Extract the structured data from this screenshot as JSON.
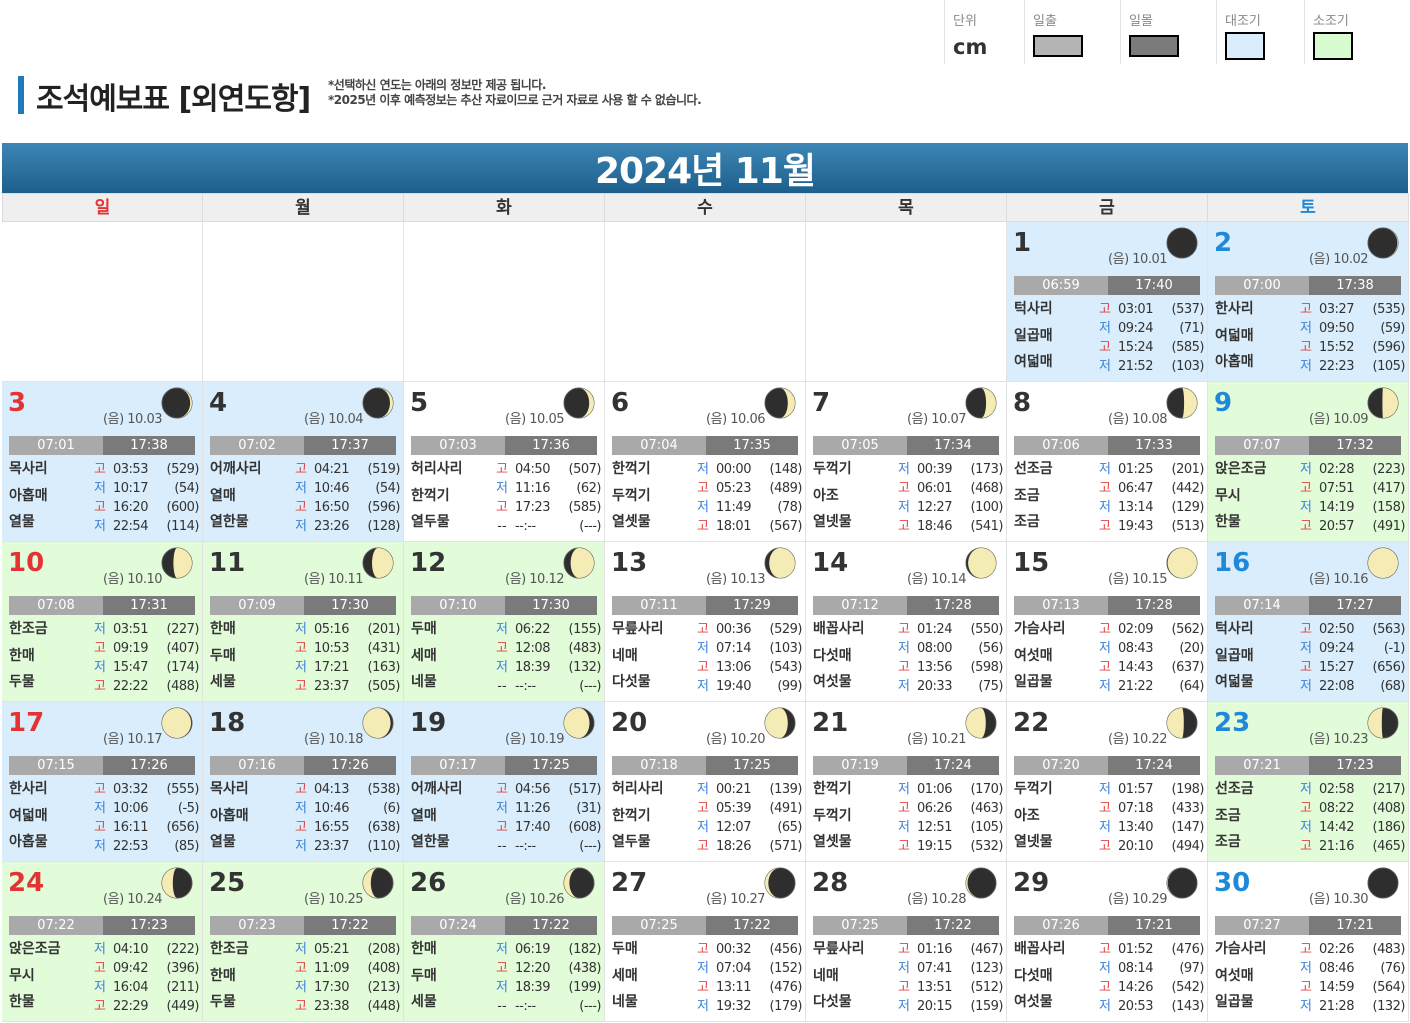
{
  "header": {
    "title": "조석예보표 [외연도항]",
    "note1": "*선택하신 연도는 아래의 정보만 제공 됩니다.",
    "note2": "*2025년 이후 예측정보는 추산 자료이므로 근거 자료로 사용 할 수 없습니다."
  },
  "legend": {
    "unit_label": "단위",
    "unit_value": "cm",
    "sunrise_label": "일출",
    "sunset_label": "일몰",
    "ebb_label": "대조기",
    "flood_label": "소조기",
    "sunrise_color": "#b4b4b4",
    "sunset_color": "#7a7a7a",
    "ebb_color": "#d9edfc",
    "flood_color": "#d9fbd0"
  },
  "calendar": {
    "month_title": "2024년 11월",
    "weekdays": [
      "일",
      "월",
      "화",
      "수",
      "목",
      "금",
      "토"
    ],
    "leading_blanks": 5,
    "days": [
      {
        "day": "1",
        "lunar": "(음) 10.01",
        "moon": 0.0,
        "bg": "ebb",
        "sunrise": "06:59",
        "sunset": "17:40",
        "names": [
          "턱사리",
          "일곱매",
          "여덟매"
        ],
        "tides": [
          [
            "고",
            "03:01",
            "(537)"
          ],
          [
            "저",
            "09:24",
            "(71)"
          ],
          [
            "고",
            "15:24",
            "(585)"
          ],
          [
            "저",
            "21:52",
            "(103)"
          ]
        ]
      },
      {
        "day": "2",
        "lunar": "(음) 10.02",
        "moon": 0.02,
        "bg": "ebb",
        "sunrise": "07:00",
        "sunset": "17:38",
        "names": [
          "한사리",
          "여덟매",
          "아홉매"
        ],
        "tides": [
          [
            "고",
            "03:27",
            "(535)"
          ],
          [
            "저",
            "09:50",
            "(59)"
          ],
          [
            "고",
            "15:52",
            "(596)"
          ],
          [
            "저",
            "22:23",
            "(105)"
          ]
        ]
      },
      {
        "day": "3",
        "lunar": "(음) 10.03",
        "moon": 0.06,
        "bg": "ebb",
        "sunrise": "07:01",
        "sunset": "17:38",
        "names": [
          "목사리",
          "아홉매",
          "열물"
        ],
        "tides": [
          [
            "고",
            "03:53",
            "(529)"
          ],
          [
            "저",
            "10:17",
            "(54)"
          ],
          [
            "고",
            "16:20",
            "(600)"
          ],
          [
            "저",
            "22:54",
            "(114)"
          ]
        ]
      },
      {
        "day": "4",
        "lunar": "(음) 10.04",
        "moon": 0.1,
        "bg": "ebb",
        "sunrise": "07:02",
        "sunset": "17:37",
        "names": [
          "어깨사리",
          "열매",
          "열한물"
        ],
        "tides": [
          [
            "고",
            "04:21",
            "(519)"
          ],
          [
            "저",
            "10:46",
            "(54)"
          ],
          [
            "고",
            "16:50",
            "(596)"
          ],
          [
            "저",
            "23:26",
            "(128)"
          ]
        ]
      },
      {
        "day": "5",
        "lunar": "(음) 10.05",
        "moon": 0.16,
        "bg": "none",
        "sunrise": "07:03",
        "sunset": "17:36",
        "names": [
          "허리사리",
          "한꺽기",
          "열두물"
        ],
        "tides": [
          [
            "고",
            "04:50",
            "(507)"
          ],
          [
            "저",
            "11:16",
            "(62)"
          ],
          [
            "고",
            "17:23",
            "(585)"
          ],
          [
            "--",
            "--:--",
            "(---)"
          ]
        ]
      },
      {
        "day": "6",
        "lunar": "(음) 10.06",
        "moon": 0.24,
        "bg": "none",
        "sunrise": "07:04",
        "sunset": "17:35",
        "names": [
          "한꺽기",
          "두꺽기",
          "열셋물"
        ],
        "tides": [
          [
            "저",
            "00:00",
            "(148)"
          ],
          [
            "고",
            "05:23",
            "(489)"
          ],
          [
            "저",
            "11:49",
            "(78)"
          ],
          [
            "고",
            "18:01",
            "(567)"
          ]
        ]
      },
      {
        "day": "7",
        "lunar": "(음) 10.07",
        "moon": 0.33,
        "bg": "none",
        "sunrise": "07:05",
        "sunset": "17:34",
        "names": [
          "두꺽기",
          "아조",
          "열넷물"
        ],
        "tides": [
          [
            "저",
            "00:39",
            "(173)"
          ],
          [
            "고",
            "06:01",
            "(468)"
          ],
          [
            "저",
            "12:27",
            "(100)"
          ],
          [
            "고",
            "18:46",
            "(541)"
          ]
        ]
      },
      {
        "day": "8",
        "lunar": "(음) 10.08",
        "moon": 0.43,
        "bg": "none",
        "sunrise": "07:06",
        "sunset": "17:33",
        "names": [
          "선조금",
          "조금",
          "조금"
        ],
        "tides": [
          [
            "저",
            "01:25",
            "(201)"
          ],
          [
            "고",
            "06:47",
            "(442)"
          ],
          [
            "저",
            "13:14",
            "(129)"
          ],
          [
            "고",
            "19:43",
            "(513)"
          ]
        ]
      },
      {
        "day": "9",
        "lunar": "(음) 10.09",
        "moon": 0.52,
        "bg": "flood",
        "sunrise": "07:07",
        "sunset": "17:32",
        "names": [
          "앉은조금",
          "무시",
          "한물"
        ],
        "tides": [
          [
            "저",
            "02:28",
            "(223)"
          ],
          [
            "고",
            "07:51",
            "(417)"
          ],
          [
            "저",
            "14:19",
            "(158)"
          ],
          [
            "고",
            "20:57",
            "(491)"
          ]
        ]
      },
      {
        "day": "10",
        "lunar": "(음) 10.10",
        "moon": 0.62,
        "bg": "flood",
        "sunrise": "07:08",
        "sunset": "17:31",
        "names": [
          "한조금",
          "한매",
          "두물"
        ],
        "tides": [
          [
            "저",
            "03:51",
            "(227)"
          ],
          [
            "고",
            "09:19",
            "(407)"
          ],
          [
            "저",
            "15:47",
            "(174)"
          ],
          [
            "고",
            "22:22",
            "(488)"
          ]
        ]
      },
      {
        "day": "11",
        "lunar": "(음) 10.11",
        "moon": 0.7,
        "bg": "flood",
        "sunrise": "07:09",
        "sunset": "17:30",
        "names": [
          "한매",
          "두매",
          "세물"
        ],
        "tides": [
          [
            "저",
            "05:16",
            "(201)"
          ],
          [
            "고",
            "10:53",
            "(431)"
          ],
          [
            "저",
            "17:21",
            "(163)"
          ],
          [
            "고",
            "23:37",
            "(505)"
          ]
        ]
      },
      {
        "day": "12",
        "lunar": "(음) 10.12",
        "moon": 0.78,
        "bg": "flood",
        "sunrise": "07:10",
        "sunset": "17:30",
        "names": [
          "두매",
          "세매",
          "네물"
        ],
        "tides": [
          [
            "저",
            "06:22",
            "(155)"
          ],
          [
            "고",
            "12:08",
            "(483)"
          ],
          [
            "저",
            "18:39",
            "(132)"
          ],
          [
            "--",
            "--:--",
            "(---)"
          ]
        ]
      },
      {
        "day": "13",
        "lunar": "(음) 10.13",
        "moon": 0.86,
        "bg": "none",
        "sunrise": "07:11",
        "sunset": "17:29",
        "names": [
          "무릎사리",
          "네매",
          "다섯물"
        ],
        "tides": [
          [
            "고",
            "00:36",
            "(529)"
          ],
          [
            "저",
            "07:14",
            "(103)"
          ],
          [
            "고",
            "13:06",
            "(543)"
          ],
          [
            "저",
            "19:40",
            "(99)"
          ]
        ]
      },
      {
        "day": "14",
        "lunar": "(음) 10.14",
        "moon": 0.93,
        "bg": "none",
        "sunrise": "07:12",
        "sunset": "17:28",
        "names": [
          "배꼽사리",
          "다섯매",
          "여섯물"
        ],
        "tides": [
          [
            "고",
            "01:24",
            "(550)"
          ],
          [
            "저",
            "08:00",
            "(56)"
          ],
          [
            "고",
            "13:56",
            "(598)"
          ],
          [
            "저",
            "20:33",
            "(75)"
          ]
        ]
      },
      {
        "day": "15",
        "lunar": "(음) 10.15",
        "moon": 0.98,
        "bg": "none",
        "sunrise": "07:13",
        "sunset": "17:28",
        "names": [
          "가슴사리",
          "여섯매",
          "일곱물"
        ],
        "tides": [
          [
            "고",
            "02:09",
            "(562)"
          ],
          [
            "저",
            "08:43",
            "(20)"
          ],
          [
            "고",
            "14:43",
            "(637)"
          ],
          [
            "저",
            "21:22",
            "(64)"
          ]
        ]
      },
      {
        "day": "16",
        "lunar": "(음) 10.16",
        "moon": 1.0,
        "bg": "ebb",
        "sunrise": "07:14",
        "sunset": "17:27",
        "names": [
          "턱사리",
          "일곱매",
          "여덟물"
        ],
        "tides": [
          [
            "고",
            "02:50",
            "(563)"
          ],
          [
            "저",
            "09:24",
            "(-1)"
          ],
          [
            "고",
            "15:27",
            "(656)"
          ],
          [
            "저",
            "22:08",
            "(68)"
          ]
        ]
      },
      {
        "day": "17",
        "lunar": "(음) 10.17",
        "moon": 0.97,
        "bg": "ebb",
        "sunrise": "07:15",
        "sunset": "17:26",
        "names": [
          "한사리",
          "여덟매",
          "아홉물"
        ],
        "tides": [
          [
            "고",
            "03:32",
            "(555)"
          ],
          [
            "저",
            "10:06",
            "(-5)"
          ],
          [
            "고",
            "16:11",
            "(656)"
          ],
          [
            "저",
            "22:53",
            "(85)"
          ]
        ]
      },
      {
        "day": "18",
        "lunar": "(음) 10.18",
        "moon": 0.92,
        "bg": "ebb",
        "sunrise": "07:16",
        "sunset": "17:26",
        "names": [
          "목사리",
          "아홉매",
          "열물"
        ],
        "tides": [
          [
            "고",
            "04:13",
            "(538)"
          ],
          [
            "저",
            "10:46",
            "(6)"
          ],
          [
            "고",
            "16:55",
            "(638)"
          ],
          [
            "저",
            "23:37",
            "(110)"
          ]
        ]
      },
      {
        "day": "19",
        "lunar": "(음) 10.19",
        "moon": 0.85,
        "bg": "ebb",
        "sunrise": "07:17",
        "sunset": "17:25",
        "names": [
          "어깨사리",
          "열매",
          "열한물"
        ],
        "tides": [
          [
            "고",
            "04:56",
            "(517)"
          ],
          [
            "저",
            "11:26",
            "(31)"
          ],
          [
            "고",
            "17:40",
            "(608)"
          ],
          [
            "--",
            "--:--",
            "(---)"
          ]
        ]
      },
      {
        "day": "20",
        "lunar": "(음) 10.20",
        "moon": 0.76,
        "bg": "none",
        "sunrise": "07:18",
        "sunset": "17:25",
        "names": [
          "허리사리",
          "한꺽기",
          "열두물"
        ],
        "tides": [
          [
            "저",
            "00:21",
            "(139)"
          ],
          [
            "고",
            "05:39",
            "(491)"
          ],
          [
            "저",
            "12:07",
            "(65)"
          ],
          [
            "고",
            "18:26",
            "(571)"
          ]
        ]
      },
      {
        "day": "21",
        "lunar": "(음) 10.21",
        "moon": 0.66,
        "bg": "none",
        "sunrise": "07:19",
        "sunset": "17:24",
        "names": [
          "한꺽기",
          "두꺽기",
          "열셋물"
        ],
        "tides": [
          [
            "저",
            "01:06",
            "(170)"
          ],
          [
            "고",
            "06:26",
            "(463)"
          ],
          [
            "저",
            "12:51",
            "(105)"
          ],
          [
            "고",
            "19:15",
            "(532)"
          ]
        ]
      },
      {
        "day": "22",
        "lunar": "(음) 10.22",
        "moon": 0.56,
        "bg": "none",
        "sunrise": "07:20",
        "sunset": "17:24",
        "names": [
          "두꺽기",
          "아조",
          "열넷물"
        ],
        "tides": [
          [
            "저",
            "01:57",
            "(198)"
          ],
          [
            "고",
            "07:18",
            "(433)"
          ],
          [
            "저",
            "13:40",
            "(147)"
          ],
          [
            "고",
            "20:10",
            "(494)"
          ]
        ]
      },
      {
        "day": "23",
        "lunar": "(음) 10.23",
        "moon": 0.46,
        "bg": "flood",
        "sunrise": "07:21",
        "sunset": "17:23",
        "names": [
          "선조금",
          "조금",
          "조금"
        ],
        "tides": [
          [
            "저",
            "02:58",
            "(217)"
          ],
          [
            "고",
            "08:22",
            "(408)"
          ],
          [
            "저",
            "14:42",
            "(186)"
          ],
          [
            "고",
            "21:16",
            "(465)"
          ]
        ]
      },
      {
        "day": "24",
        "lunar": "(음) 10.24",
        "moon": 0.36,
        "bg": "flood",
        "sunrise": "07:22",
        "sunset": "17:23",
        "names": [
          "앉은조금",
          "무시",
          "한물"
        ],
        "tides": [
          [
            "저",
            "04:10",
            "(222)"
          ],
          [
            "고",
            "09:42",
            "(396)"
          ],
          [
            "저",
            "16:04",
            "(211)"
          ],
          [
            "고",
            "22:29",
            "(449)"
          ]
        ]
      },
      {
        "day": "25",
        "lunar": "(음) 10.25",
        "moon": 0.26,
        "bg": "flood",
        "sunrise": "07:23",
        "sunset": "17:22",
        "names": [
          "한조금",
          "한매",
          "두물"
        ],
        "tides": [
          [
            "저",
            "05:21",
            "(208)"
          ],
          [
            "고",
            "11:09",
            "(408)"
          ],
          [
            "저",
            "17:30",
            "(213)"
          ],
          [
            "고",
            "23:38",
            "(448)"
          ]
        ]
      },
      {
        "day": "26",
        "lunar": "(음) 10.26",
        "moon": 0.18,
        "bg": "flood",
        "sunrise": "07:24",
        "sunset": "17:22",
        "names": [
          "한매",
          "두매",
          "세물"
        ],
        "tides": [
          [
            "저",
            "06:19",
            "(182)"
          ],
          [
            "고",
            "12:20",
            "(438)"
          ],
          [
            "저",
            "18:39",
            "(199)"
          ],
          [
            "--",
            "--:--",
            "(---)"
          ]
        ]
      },
      {
        "day": "27",
        "lunar": "(음) 10.27",
        "moon": 0.11,
        "bg": "none",
        "sunrise": "07:25",
        "sunset": "17:22",
        "names": [
          "두매",
          "세매",
          "네물"
        ],
        "tides": [
          [
            "고",
            "00:32",
            "(456)"
          ],
          [
            "저",
            "07:04",
            "(152)"
          ],
          [
            "고",
            "13:11",
            "(476)"
          ],
          [
            "저",
            "19:32",
            "(179)"
          ]
        ]
      },
      {
        "day": "28",
        "lunar": "(음) 10.28",
        "moon": 0.05,
        "bg": "none",
        "sunrise": "07:25",
        "sunset": "17:22",
        "names": [
          "무릎사리",
          "네매",
          "다섯물"
        ],
        "tides": [
          [
            "고",
            "01:16",
            "(467)"
          ],
          [
            "저",
            "07:41",
            "(123)"
          ],
          [
            "고",
            "13:51",
            "(512)"
          ],
          [
            "저",
            "20:15",
            "(159)"
          ]
        ]
      },
      {
        "day": "29",
        "lunar": "(음) 10.29",
        "moon": 0.02,
        "bg": "none",
        "sunrise": "07:26",
        "sunset": "17:21",
        "names": [
          "배꼽사리",
          "다섯매",
          "여섯물"
        ],
        "tides": [
          [
            "고",
            "01:52",
            "(476)"
          ],
          [
            "저",
            "08:14",
            "(97)"
          ],
          [
            "고",
            "14:26",
            "(542)"
          ],
          [
            "저",
            "20:53",
            "(143)"
          ]
        ]
      },
      {
        "day": "30",
        "lunar": "(음) 10.30",
        "moon": 0.0,
        "bg": "none",
        "sunrise": "07:27",
        "sunset": "17:21",
        "names": [
          "가슴사리",
          "여섯매",
          "일곱물"
        ],
        "tides": [
          [
            "고",
            "02:26",
            "(483)"
          ],
          [
            "저",
            "08:46",
            "(76)"
          ],
          [
            "고",
            "14:59",
            "(564)"
          ],
          [
            "저",
            "21:28",
            "(132)"
          ]
        ]
      }
    ]
  }
}
